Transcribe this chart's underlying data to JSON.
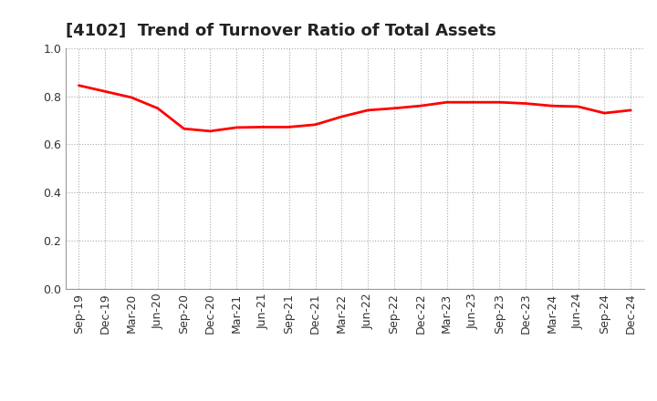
{
  "title": "[4102]  Trend of Turnover Ratio of Total Assets",
  "x_labels": [
    "Sep-19",
    "Dec-19",
    "Mar-20",
    "Jun-20",
    "Sep-20",
    "Dec-20",
    "Mar-21",
    "Jun-21",
    "Sep-21",
    "Dec-21",
    "Mar-22",
    "Jun-22",
    "Sep-22",
    "Dec-22",
    "Mar-23",
    "Jun-23",
    "Sep-23",
    "Dec-23",
    "Mar-24",
    "Jun-24",
    "Sep-24",
    "Dec-24"
  ],
  "y_values": [
    0.845,
    0.82,
    0.795,
    0.75,
    0.665,
    0.655,
    0.67,
    0.672,
    0.672,
    0.682,
    0.715,
    0.742,
    0.75,
    0.76,
    0.775,
    0.775,
    0.775,
    0.77,
    0.76,
    0.757,
    0.73,
    0.742
  ],
  "ylim": [
    0.0,
    1.0
  ],
  "yticks": [
    0.0,
    0.2,
    0.4,
    0.6,
    0.8,
    1.0
  ],
  "line_color": "#ff0000",
  "line_width": 2.0,
  "bg_color": "#ffffff",
  "grid_color": "#aaaaaa",
  "title_fontsize": 13,
  "tick_fontsize": 9,
  "title_color": "#222222"
}
